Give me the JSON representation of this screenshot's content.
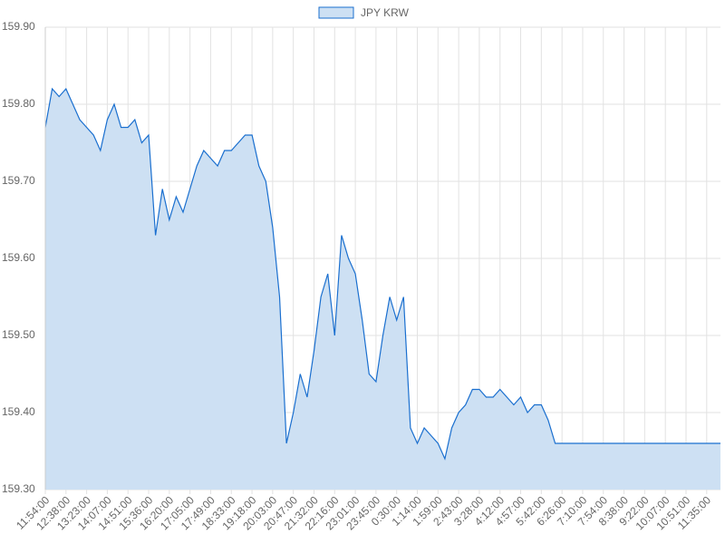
{
  "chart_data": {
    "type": "line",
    "area": true,
    "categories": [
      "11:54:00",
      null,
      null,
      "12:38:00",
      null,
      null,
      "13:23:00",
      null,
      null,
      "14:07:00",
      null,
      null,
      "14:51:00",
      null,
      null,
      "15:36:00",
      null,
      null,
      "16:20:00",
      null,
      null,
      "17:05:00",
      null,
      null,
      "17:49:00",
      null,
      null,
      "18:33:00",
      null,
      null,
      "19:18:00",
      null,
      null,
      "20:03:00",
      null,
      null,
      "20:47:00",
      null,
      null,
      "21:32:00",
      null,
      null,
      "22:16:00",
      null,
      null,
      "23:01:00",
      null,
      null,
      "23:45:00",
      null,
      null,
      "0:30:00",
      null,
      null,
      "1:14:00",
      null,
      null,
      "1:59:00",
      null,
      null,
      "2:43:00",
      null,
      null,
      "3:28:00",
      null,
      null,
      "4:12:00",
      null,
      null,
      "4:57:00",
      null,
      null,
      "5:42:00",
      null,
      null,
      "6:26:00",
      null,
      null,
      "7:10:00",
      null,
      null,
      "7:54:00",
      null,
      null,
      "8:38:00",
      null,
      null,
      "9:22:00",
      null,
      null,
      "10:07:00",
      null,
      null,
      "10:51:00",
      null,
      null,
      "11:35:00",
      null,
      null
    ],
    "series": [
      {
        "name": "JPY KRW",
        "color": "#1a6fcf",
        "fill": "#cde0f3",
        "values": [
          159.77,
          159.82,
          159.81,
          159.82,
          159.8,
          159.78,
          159.77,
          159.76,
          159.74,
          159.78,
          159.8,
          159.77,
          159.77,
          159.78,
          159.75,
          159.76,
          159.63,
          159.69,
          159.65,
          159.68,
          159.66,
          159.69,
          159.72,
          159.74,
          159.73,
          159.72,
          159.74,
          159.74,
          159.75,
          159.76,
          159.76,
          159.72,
          159.7,
          159.64,
          159.55,
          159.36,
          159.4,
          159.45,
          159.42,
          159.48,
          159.55,
          159.58,
          159.5,
          159.63,
          159.6,
          159.58,
          159.52,
          159.45,
          159.44,
          159.5,
          159.55,
          159.52,
          159.55,
          159.38,
          159.36,
          159.38,
          159.37,
          159.36,
          159.34,
          159.38,
          159.4,
          159.41,
          159.43,
          159.43,
          159.42,
          159.42,
          159.43,
          159.42,
          159.41,
          159.42,
          159.4,
          159.41,
          159.41,
          159.39,
          159.36,
          159.36,
          159.36,
          159.36,
          159.36,
          159.36,
          159.36,
          159.36,
          159.36,
          159.36,
          159.36,
          159.36,
          159.36,
          159.36,
          159.36,
          159.36,
          159.36,
          159.36,
          159.36,
          159.36,
          159.36,
          159.36,
          159.36,
          159.36,
          159.36
        ]
      }
    ],
    "ylim": [
      159.3,
      159.9
    ],
    "yticks": [
      {
        "value": 159.3,
        "label": "159.30"
      },
      {
        "value": 159.4,
        "label": "159.40"
      },
      {
        "value": 159.5,
        "label": "159.50"
      },
      {
        "value": 159.6,
        "label": "159.60"
      },
      {
        "value": 159.7,
        "label": "159.70"
      },
      {
        "value": 159.8,
        "label": "159.80"
      },
      {
        "value": 159.9,
        "label": "159.90"
      }
    ],
    "grid": true,
    "legend": "top"
  }
}
